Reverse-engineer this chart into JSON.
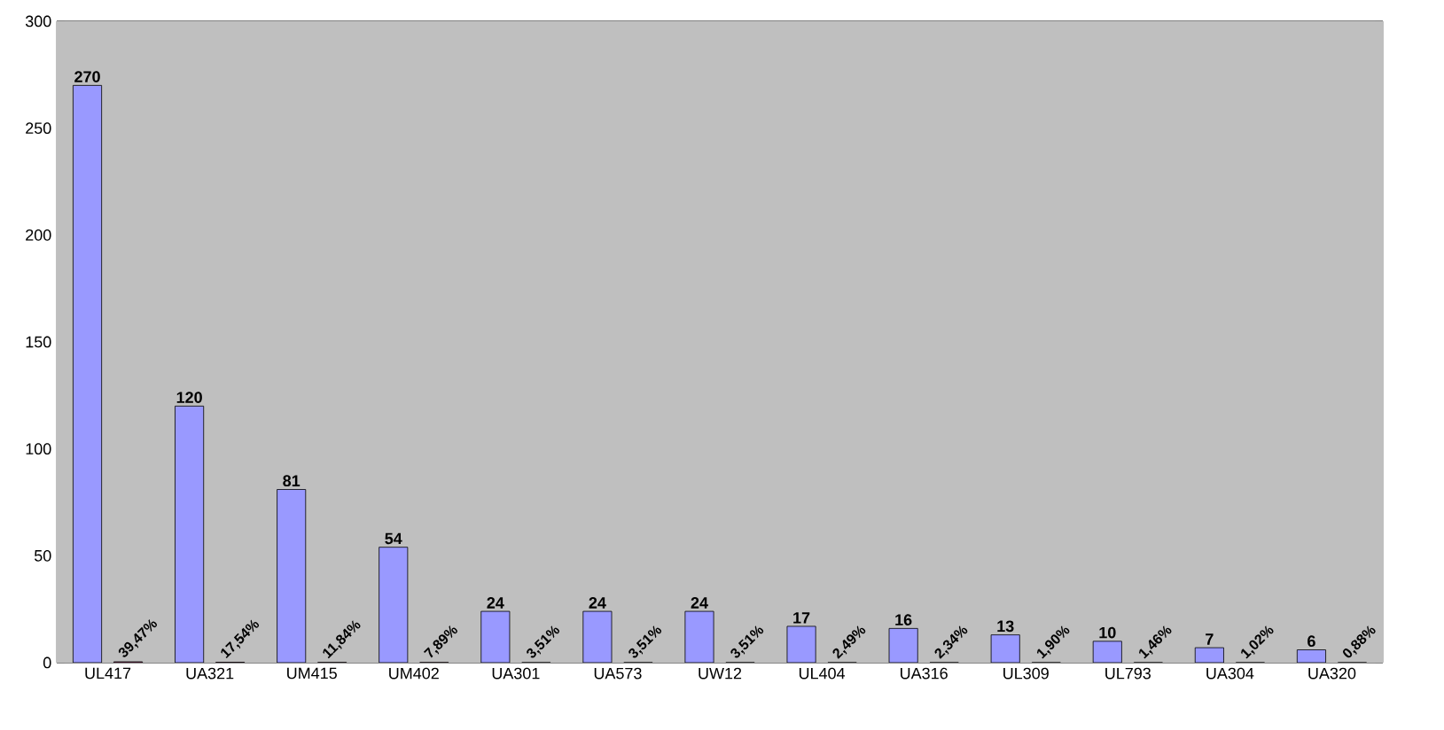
{
  "chart_data": {
    "type": "bar",
    "categories": [
      "UL417",
      "UA321",
      "UM415",
      "UM402",
      "UA301",
      "UA573",
      "UW12",
      "UL404",
      "UA316",
      "UL309",
      "UL793",
      "UA304",
      "UA320"
    ],
    "series": [
      {
        "color": "#9999ff",
        "values": [
          270,
          120,
          81,
          54,
          24,
          24,
          24,
          17,
          16,
          13,
          10,
          7,
          6
        ],
        "value_labels": [
          "270",
          "120",
          "81",
          "54",
          "24",
          "24",
          "24",
          "17",
          "16",
          "13",
          "10",
          "7",
          "6"
        ]
      },
      {
        "color": "#993366",
        "values": [
          0.3947,
          0.1754,
          0.1184,
          0.0789,
          0.0351,
          0.0351,
          0.0351,
          0.0249,
          0.0234,
          0.019,
          0.0146,
          0.0102,
          0.0088
        ],
        "value_labels": [
          "39,47%",
          "17,54%",
          "11,84%",
          "7,89%",
          "3,51%",
          "3,51%",
          "3,51%",
          "2,49%",
          "2,34%",
          "1,90%",
          "1,46%",
          "1,02%",
          "0,88%"
        ]
      }
    ],
    "ylim": [
      0,
      300
    ],
    "yticks": [
      0,
      50,
      100,
      150,
      200,
      250,
      300
    ],
    "grid": "y"
  }
}
